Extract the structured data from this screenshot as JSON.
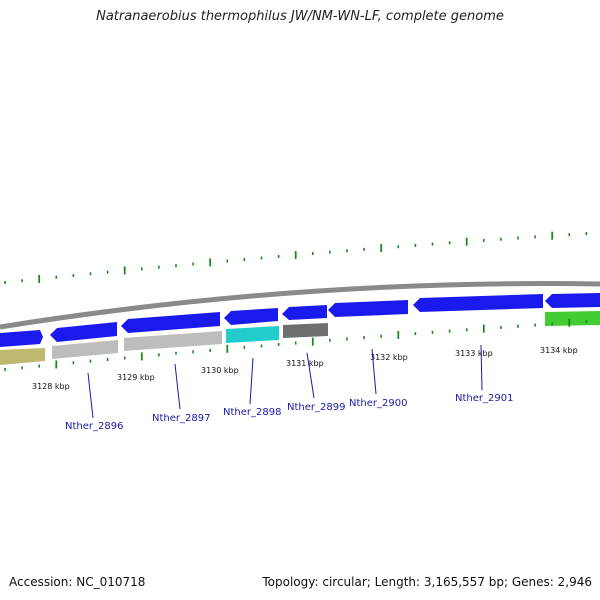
{
  "title": "Natranaerobius thermophilus JW/NM-WN-LF, complete genome",
  "footer": {
    "accession": "Accession: NC_010718",
    "summary": "Topology: circular; Length: 3,165,557 bp; Genes: 2,946"
  },
  "colors": {
    "backbone": "#8a8a8a",
    "forward_gene": "#1a1aee",
    "reverse_gray": "#bdbdbd",
    "reverse_olive": "#bfb870",
    "reverse_cyan": "#22cccc",
    "reverse_dark": "#6e6e6e",
    "reverse_green": "#44cc33",
    "tick": "#1a8a1a",
    "label": "#1a1aaa"
  },
  "kbp_labels": [
    "3128 kbp",
    "3129 kbp",
    "3130 kbp",
    "3131 kbp",
    "3132 kbp",
    "3133 kbp",
    "3134 kbp"
  ],
  "gene_labels": [
    "Nther_2896",
    "Nther_2897",
    "Nther_2898",
    "Nther_2899",
    "Nther_2900",
    "Nther_2901"
  ]
}
